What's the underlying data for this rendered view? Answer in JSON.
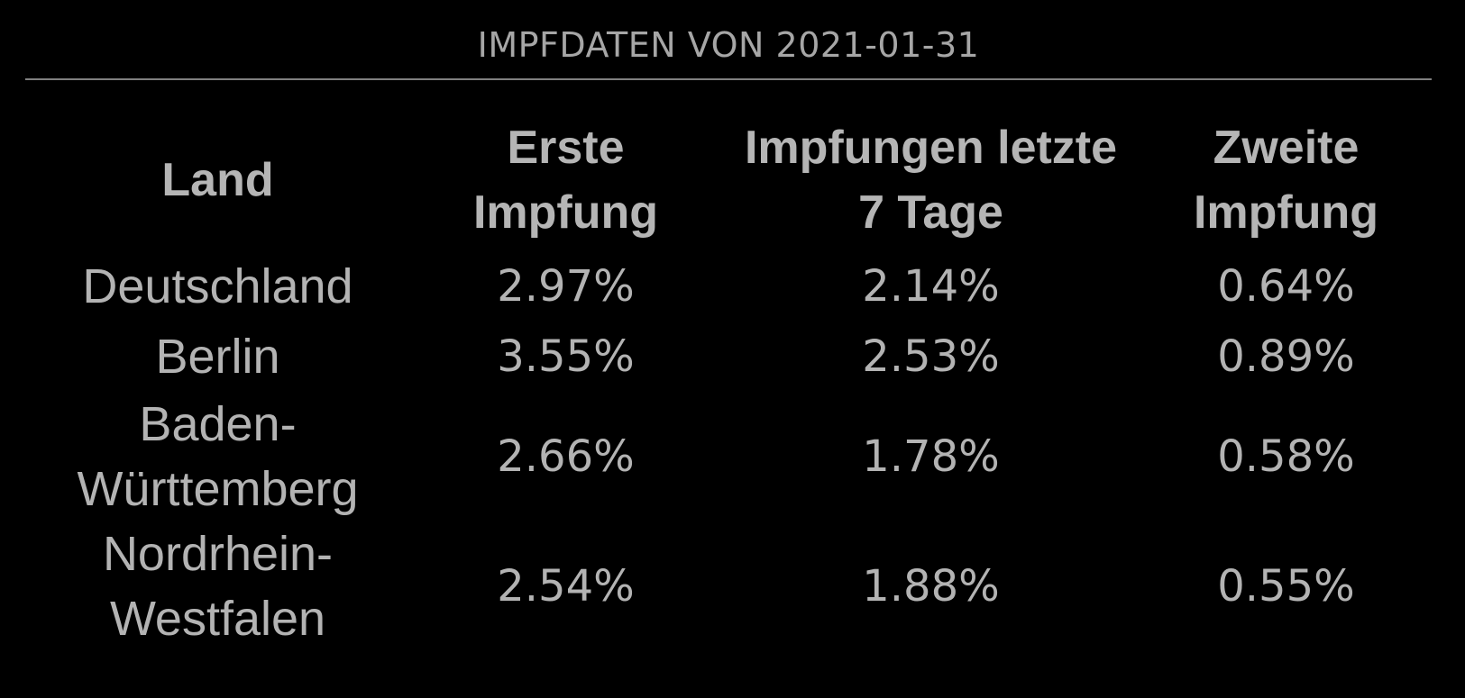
{
  "header": {
    "title": "IMPFDATEN VON 2021-01-31"
  },
  "table": {
    "columns": [
      {
        "label": "Land"
      },
      {
        "label": "Erste Impfung"
      },
      {
        "label": "Impfungen letzte 7 Tage"
      },
      {
        "label": "Zweite Impfung"
      }
    ],
    "rows": [
      {
        "land": "Deutschland",
        "erste": "2.97%",
        "letzte7": "2.14%",
        "zweite": "0.64%"
      },
      {
        "land": "Berlin",
        "erste": "3.55%",
        "letzte7": "2.53%",
        "zweite": "0.89%"
      },
      {
        "land": "Baden-Württemberg",
        "erste": "2.66%",
        "letzte7": "1.78%",
        "zweite": "0.58%"
      },
      {
        "land": "Nordrhein-Westfalen",
        "erste": "2.54%",
        "letzte7": "1.88%",
        "zweite": "0.55%"
      }
    ]
  },
  "colors": {
    "background": "#000000",
    "text": "#b3b3b3",
    "divider": "#808080"
  }
}
